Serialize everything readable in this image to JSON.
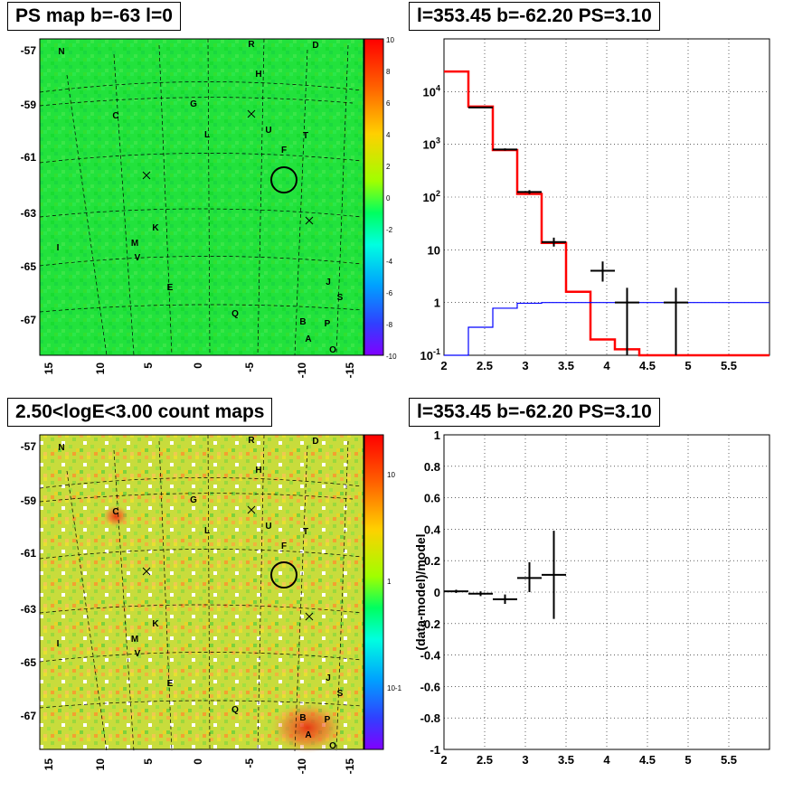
{
  "panels": {
    "tl_title": "PS map b=-63 l=0",
    "tr_title": "l=353.45 b=-62.20 PS=3.10",
    "bl_title": "2.50<logE<3.00 count maps",
    "br_title": "l=353.45 b=-62.20 PS=3.10"
  },
  "maps": {
    "lat_ticks": [
      "-57",
      "-59",
      "-61",
      "-63",
      "-65",
      "-67"
    ],
    "lon_ticks": [
      "15",
      "10",
      "5",
      "0",
      "-5",
      "-10",
      "-15"
    ],
    "source_letters": [
      "N",
      "R",
      "D",
      "H",
      "G",
      "C",
      "L",
      "U",
      "T",
      "F",
      "I",
      "M",
      "V",
      "K",
      "E",
      "J",
      "S",
      "Q",
      "B",
      "P",
      "A",
      "O"
    ],
    "ps_colorbar_ticks": [
      "10",
      "8",
      "6",
      "4",
      "2",
      "0",
      "-2",
      "-4",
      "-6",
      "-8",
      "-10"
    ],
    "count_colorbar_ticks": [
      "10",
      "1",
      "10-1"
    ]
  },
  "chart_data": [
    {
      "type": "heatmap",
      "title": "PS map b=-63 l=0",
      "xlim": [
        16,
        -16
      ],
      "ylim": [
        -68.5,
        -56.5
      ],
      "zlim": [
        -10,
        10
      ],
      "colorbar_ticks": [
        10,
        8,
        6,
        4,
        2,
        0,
        -2,
        -4,
        -6,
        -8,
        -10
      ],
      "markers": [
        {
          "type": "circle",
          "label": "test position",
          "l": -6.5,
          "b": -62.2
        }
      ]
    },
    {
      "type": "line",
      "title": "l=353.45 b=-62.20 PS=3.10",
      "xlim": [
        2,
        6
      ],
      "ylim": [
        0.1,
        100000
      ],
      "ylog": true,
      "grid": true,
      "x_ticks": [
        2,
        2.5,
        3,
        3.5,
        4,
        4.5,
        5,
        5.5
      ],
      "series": [
        {
          "color": "#ff0000",
          "style": "histogram",
          "edges": [
            2.0,
            2.3,
            2.6,
            2.9,
            3.2,
            3.5,
            3.8,
            4.1,
            4.4,
            6.0
          ],
          "values": [
            24000,
            5200,
            780,
            115,
            13.5,
            1.6,
            0.2,
            0.13,
            0.1
          ]
        },
        {
          "color": "#0000ff",
          "style": "histogram",
          "edges": [
            2.0,
            2.3,
            2.6,
            2.9,
            3.2,
            3.5,
            6.0
          ],
          "values": [
            0.1,
            0.34,
            0.78,
            0.97,
            1.0,
            1.0
          ]
        },
        {
          "color": "#000000",
          "style": "errorbars",
          "x": [
            2.45,
            2.75,
            3.05,
            3.35,
            3.95,
            4.25,
            4.85
          ],
          "xerr": [
            0.15,
            0.15,
            0.15,
            0.15,
            0.15,
            0.15,
            0.15
          ],
          "y": [
            5000,
            800,
            125,
            14,
            4,
            1,
            1
          ],
          "ylo": [
            4800,
            760,
            115,
            11.5,
            2.5,
            0.1,
            0.1
          ],
          "yhi": [
            5200,
            840,
            135,
            17,
            6,
            1.9,
            1.9
          ]
        }
      ]
    },
    {
      "type": "heatmap",
      "title": "2.50<logE<3.00 count maps",
      "xlim": [
        16,
        -16
      ],
      "ylim": [
        -68.5,
        -56.5
      ],
      "zlog": true,
      "colorbar_ticks": [
        "10",
        "1",
        "10-1"
      ],
      "markers": [
        {
          "type": "circle",
          "label": "test position",
          "l": -6.5,
          "b": -62.2
        }
      ]
    },
    {
      "type": "scatter",
      "title": "l=353.45 b=-62.20 PS=3.10",
      "ylabel": "(data-model)/model",
      "xlim": [
        2,
        6
      ],
      "ylim": [
        -1,
        1
      ],
      "grid": true,
      "x_ticks": [
        2,
        2.5,
        3,
        3.5,
        4,
        4.5,
        5,
        5.5
      ],
      "y_ticks": [
        -1,
        -0.8,
        -0.6,
        -0.4,
        -0.2,
        0,
        0.2,
        0.4,
        0.6,
        0.8,
        1
      ],
      "series": [
        {
          "color": "#000000",
          "style": "errorbars",
          "x": [
            2.15,
            2.45,
            2.75,
            3.05,
            3.35
          ],
          "xerr": [
            0.15,
            0.15,
            0.15,
            0.15,
            0.15
          ],
          "y": [
            0.005,
            -0.01,
            -0.045,
            0.09,
            0.11
          ],
          "ylo": [
            -0.005,
            -0.025,
            -0.075,
            0.0,
            -0.17
          ],
          "yhi": [
            0.015,
            0.005,
            -0.015,
            0.19,
            0.39
          ]
        }
      ]
    }
  ],
  "colors": {
    "ps_map_bg": "#22e23c",
    "count_map_bg": "#c8dc3c",
    "red_line": "#ff0000",
    "blue_line": "#0000ff"
  }
}
